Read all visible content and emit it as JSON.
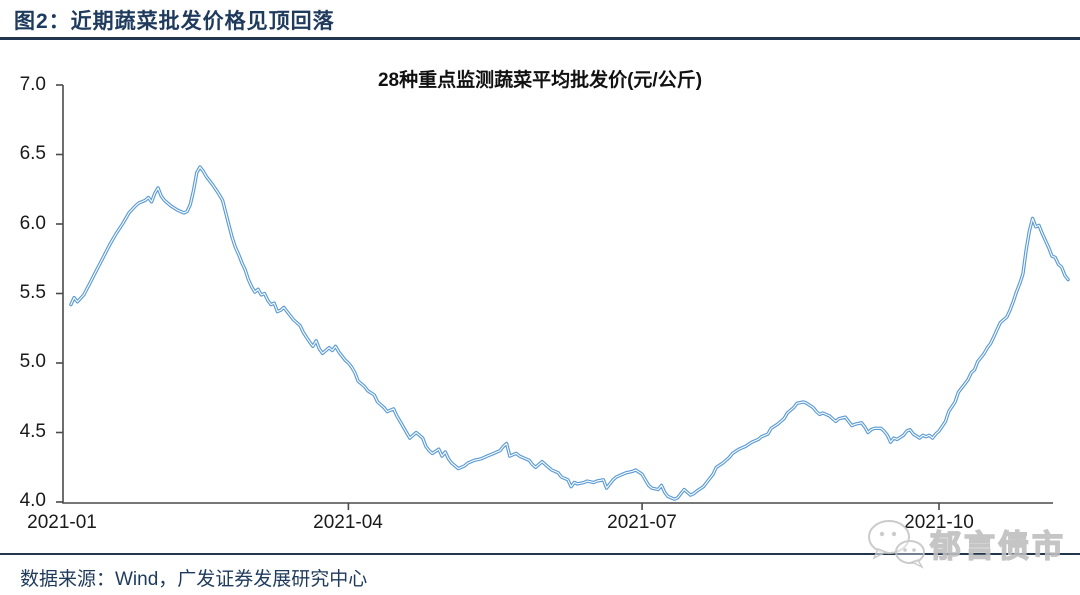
{
  "header": {
    "title": "图2：近期蔬菜批发价格见顶回落"
  },
  "footer": {
    "source": "数据来源：Wind，广发证券发展研究中心"
  },
  "watermark": {
    "text": "郁言债市",
    "icon": "wechat-logo-icon"
  },
  "colors": {
    "accent_navy": "#1e3a5c",
    "line_blue": "#5b9bd5",
    "line_core_white": "#ffffff",
    "axis_gray": "#4a4a4a",
    "label_black": "#1a1a1a",
    "watermark_gray": "#c6c6c6"
  },
  "chart_data": {
    "type": "line",
    "title": "28种重点监测蔬菜平均批发价(元/公斤)",
    "unit": "元/公斤",
    "y_ticks": [
      "7.0",
      "6.5",
      "6.0",
      "5.5",
      "5.0",
      "4.5",
      "4.0"
    ],
    "ylim": [
      4.0,
      7.0
    ],
    "x_tick_labels": [
      "2021-01",
      "2021-04",
      "2021-07",
      "2021-10"
    ],
    "x_tick_days": [
      1,
      91,
      182,
      274
    ],
    "x_unit": "day_of_year_2021",
    "grid": false,
    "legend": false,
    "line_color": "#5b9bd5",
    "points": [
      [
        5,
        5.42
      ],
      [
        6,
        5.47
      ],
      [
        7,
        5.44
      ],
      [
        9,
        5.49
      ],
      [
        11,
        5.58
      ],
      [
        13,
        5.67
      ],
      [
        15,
        5.76
      ],
      [
        17,
        5.85
      ],
      [
        19,
        5.93
      ],
      [
        21,
        6.0
      ],
      [
        23,
        6.08
      ],
      [
        25,
        6.13
      ],
      [
        26,
        6.15
      ],
      [
        28,
        6.17
      ],
      [
        29,
        6.19
      ],
      [
        30,
        6.16
      ],
      [
        31,
        6.22
      ],
      [
        32,
        6.26
      ],
      [
        33,
        6.2
      ],
      [
        34,
        6.17
      ],
      [
        36,
        6.13
      ],
      [
        38,
        6.1
      ],
      [
        40,
        6.08
      ],
      [
        41,
        6.09
      ],
      [
        42,
        6.14
      ],
      [
        43,
        6.24
      ],
      [
        44,
        6.37
      ],
      [
        45,
        6.41
      ],
      [
        46,
        6.38
      ],
      [
        47,
        6.34
      ],
      [
        49,
        6.28
      ],
      [
        51,
        6.21
      ],
      [
        52,
        6.17
      ],
      [
        53,
        6.08
      ],
      [
        54,
        5.99
      ],
      [
        55,
        5.9
      ],
      [
        56,
        5.83
      ],
      [
        57,
        5.78
      ],
      [
        58,
        5.72
      ],
      [
        59,
        5.67
      ],
      [
        60,
        5.6
      ],
      [
        61,
        5.55
      ],
      [
        62,
        5.51
      ],
      [
        63,
        5.53
      ],
      [
        64,
        5.49
      ],
      [
        65,
        5.5
      ],
      [
        66,
        5.45
      ],
      [
        67,
        5.42
      ],
      [
        68,
        5.43
      ],
      [
        69,
        5.37
      ],
      [
        70,
        5.38
      ],
      [
        71,
        5.4
      ],
      [
        72,
        5.37
      ],
      [
        74,
        5.31
      ],
      [
        76,
        5.27
      ],
      [
        77,
        5.22
      ],
      [
        79,
        5.15
      ],
      [
        80,
        5.12
      ],
      [
        81,
        5.16
      ],
      [
        82,
        5.1
      ],
      [
        83,
        5.07
      ],
      [
        85,
        5.11
      ],
      [
        86,
        5.09
      ],
      [
        87,
        5.12
      ],
      [
        88,
        5.08
      ],
      [
        90,
        5.02
      ],
      [
        91,
        5.0
      ],
      [
        92,
        4.97
      ],
      [
        93,
        4.93
      ],
      [
        94,
        4.87
      ],
      [
        96,
        4.83
      ],
      [
        97,
        4.8
      ],
      [
        99,
        4.77
      ],
      [
        100,
        4.72
      ],
      [
        102,
        4.68
      ],
      [
        103,
        4.65
      ],
      [
        105,
        4.67
      ],
      [
        106,
        4.62
      ],
      [
        107,
        4.58
      ],
      [
        109,
        4.5
      ],
      [
        110,
        4.46
      ],
      [
        111,
        4.48
      ],
      [
        112,
        4.5
      ],
      [
        114,
        4.46
      ],
      [
        115,
        4.4
      ],
      [
        116,
        4.37
      ],
      [
        117,
        4.35
      ],
      [
        119,
        4.38
      ],
      [
        120,
        4.33
      ],
      [
        121,
        4.36
      ],
      [
        122,
        4.31
      ],
      [
        123,
        4.28
      ],
      [
        125,
        4.24
      ],
      [
        127,
        4.26
      ],
      [
        128,
        4.28
      ],
      [
        130,
        4.3
      ],
      [
        132,
        4.31
      ],
      [
        134,
        4.33
      ],
      [
        136,
        4.35
      ],
      [
        138,
        4.37
      ],
      [
        139,
        4.4
      ],
      [
        140,
        4.42
      ],
      [
        141,
        4.33
      ],
      [
        142,
        4.34
      ],
      [
        143,
        4.35
      ],
      [
        144,
        4.33
      ],
      [
        146,
        4.31
      ],
      [
        147,
        4.3
      ],
      [
        148,
        4.27
      ],
      [
        149,
        4.25
      ],
      [
        151,
        4.29
      ],
      [
        152,
        4.27
      ],
      [
        153,
        4.25
      ],
      [
        154,
        4.23
      ],
      [
        156,
        4.21
      ],
      [
        157,
        4.18
      ],
      [
        159,
        4.16
      ],
      [
        160,
        4.11
      ],
      [
        161,
        4.14
      ],
      [
        162,
        4.13
      ],
      [
        164,
        4.14
      ],
      [
        165,
        4.15
      ],
      [
        167,
        4.14
      ],
      [
        168,
        4.15
      ],
      [
        170,
        4.16
      ],
      [
        171,
        4.1
      ],
      [
        172,
        4.13
      ],
      [
        173,
        4.16
      ],
      [
        174,
        4.18
      ],
      [
        176,
        4.2
      ],
      [
        177,
        4.21
      ],
      [
        179,
        4.22
      ],
      [
        180,
        4.23
      ],
      [
        182,
        4.2
      ],
      [
        183,
        4.16
      ],
      [
        184,
        4.12
      ],
      [
        185,
        4.1
      ],
      [
        187,
        4.09
      ],
      [
        188,
        4.12
      ],
      [
        189,
        4.07
      ],
      [
        190,
        4.04
      ],
      [
        192,
        4.02
      ],
      [
        193,
        4.03
      ],
      [
        194,
        4.06
      ],
      [
        195,
        4.09
      ],
      [
        197,
        4.05
      ],
      [
        198,
        4.06
      ],
      [
        199,
        4.08
      ],
      [
        201,
        4.11
      ],
      [
        202,
        4.14
      ],
      [
        204,
        4.2
      ],
      [
        205,
        4.25
      ],
      [
        207,
        4.28
      ],
      [
        209,
        4.32
      ],
      [
        210,
        4.35
      ],
      [
        212,
        4.38
      ],
      [
        214,
        4.4
      ],
      [
        216,
        4.43
      ],
      [
        218,
        4.45
      ],
      [
        219,
        4.47
      ],
      [
        221,
        4.49
      ],
      [
        222,
        4.53
      ],
      [
        224,
        4.56
      ],
      [
        226,
        4.6
      ],
      [
        227,
        4.64
      ],
      [
        229,
        4.68
      ],
      [
        230,
        4.71
      ],
      [
        232,
        4.72
      ],
      [
        233,
        4.71
      ],
      [
        235,
        4.68
      ],
      [
        236,
        4.65
      ],
      [
        237,
        4.63
      ],
      [
        238,
        4.64
      ],
      [
        240,
        4.62
      ],
      [
        241,
        4.6
      ],
      [
        242,
        4.58
      ],
      [
        243,
        4.6
      ],
      [
        245,
        4.61
      ],
      [
        246,
        4.58
      ],
      [
        247,
        4.55
      ],
      [
        248,
        4.56
      ],
      [
        250,
        4.57
      ],
      [
        251,
        4.54
      ],
      [
        252,
        4.5
      ],
      [
        253,
        4.52
      ],
      [
        254,
        4.53
      ],
      [
        256,
        4.53
      ],
      [
        257,
        4.51
      ],
      [
        258,
        4.48
      ],
      [
        259,
        4.43
      ],
      [
        260,
        4.46
      ],
      [
        261,
        4.45
      ],
      [
        263,
        4.48
      ],
      [
        264,
        4.51
      ],
      [
        265,
        4.52
      ],
      [
        266,
        4.49
      ],
      [
        268,
        4.46
      ],
      [
        269,
        4.48
      ],
      [
        270,
        4.47
      ],
      [
        271,
        4.48
      ],
      [
        272,
        4.46
      ],
      [
        273,
        4.49
      ],
      [
        274,
        4.51
      ],
      [
        276,
        4.58
      ],
      [
        277,
        4.65
      ],
      [
        279,
        4.72
      ],
      [
        280,
        4.79
      ],
      [
        282,
        4.85
      ],
      [
        283,
        4.88
      ],
      [
        284,
        4.93
      ],
      [
        285,
        4.95
      ],
      [
        286,
        5.01
      ],
      [
        287,
        5.04
      ],
      [
        288,
        5.07
      ],
      [
        289,
        5.11
      ],
      [
        290,
        5.14
      ],
      [
        291,
        5.19
      ],
      [
        292,
        5.24
      ],
      [
        293,
        5.29
      ],
      [
        294,
        5.31
      ],
      [
        295,
        5.33
      ],
      [
        296,
        5.38
      ],
      [
        297,
        5.44
      ],
      [
        298,
        5.51
      ],
      [
        299,
        5.57
      ],
      [
        300,
        5.64
      ],
      [
        301,
        5.81
      ],
      [
        302,
        5.95
      ],
      [
        303,
        6.04
      ],
      [
        304,
        5.98
      ],
      [
        305,
        5.99
      ],
      [
        306,
        5.93
      ],
      [
        307,
        5.88
      ],
      [
        308,
        5.83
      ],
      [
        309,
        5.77
      ],
      [
        310,
        5.76
      ],
      [
        311,
        5.71
      ],
      [
        312,
        5.69
      ],
      [
        313,
        5.63
      ],
      [
        314,
        5.6
      ]
    ]
  }
}
